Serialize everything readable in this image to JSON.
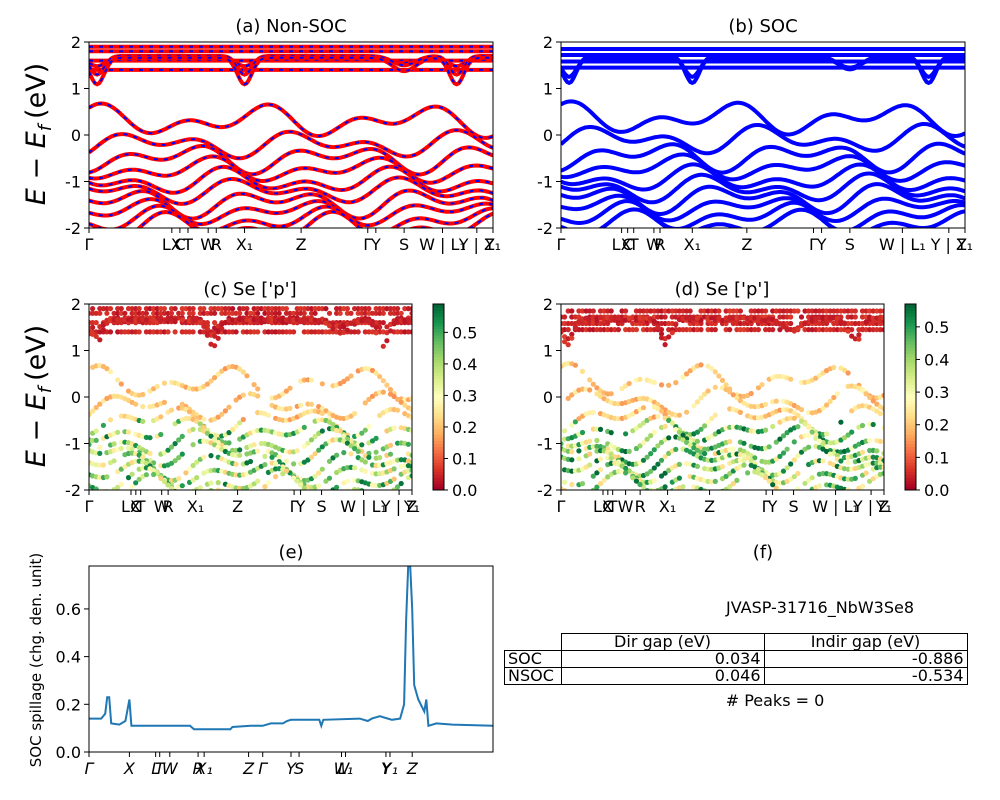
{
  "figure": {
    "ylabel_main": "E − E",
    "ylabel_sub": "f",
    "ylabel_unit": "(eV)"
  },
  "panels": {
    "a": {
      "title": "(a) Non-SOC"
    },
    "b": {
      "title": "(b) SOC"
    },
    "c": {
      "title": "(c)  Se ['p']"
    },
    "d": {
      "title": "(d) Se ['p']"
    },
    "e": {
      "title": "(e)",
      "ylabel": "SOC spillage (chg. den. unit)"
    },
    "f": {
      "title": "(f)",
      "material": "JVASP-31716_NbW3Se8",
      "peaks": "# Peaks = 0"
    }
  },
  "colorbar_c": {
    "ticks": [
      "0.0",
      "0.1",
      "0.2",
      "0.3",
      "0.4",
      "0.5"
    ],
    "max": 0.59,
    "colormap": "RdYlGn"
  },
  "colorbar_d": {
    "ticks": [
      "0.0",
      "0.1",
      "0.2",
      "0.3",
      "0.4",
      "0.5"
    ],
    "max": 0.57,
    "colormap": "RdYlGn"
  },
  "band_colors": {
    "non_soc_line": "#ff0000",
    "non_soc_dash": "#0000ff",
    "soc_line": "#0000ff"
  },
  "spillage_color": "#1f77b4",
  "gap_table": {
    "headers": [
      "Dir gap (eV)",
      "Indir gap (eV)"
    ],
    "rows": [
      {
        "label": "SOC",
        "dir": "0.034",
        "indir": "-0.886"
      },
      {
        "label": "NSOC",
        "dir": "0.046",
        "indir": "-0.534"
      }
    ]
  },
  "chart_data": [
    {
      "type": "line",
      "panel": "a",
      "title": "(a) Non-SOC",
      "ylabel": "E − E_f (eV)",
      "ylim": [
        -2,
        2
      ],
      "yticks": [
        -2,
        -1,
        0,
        1,
        2
      ],
      "xlim": [
        0,
        1
      ],
      "kpath": [
        {
          "label": "Γ",
          "x": 0.0
        },
        {
          "label": "LX",
          "x": 0.205
        },
        {
          "label": "C",
          "x": 0.225
        },
        {
          "label": "T",
          "x": 0.245
        },
        {
          "label": "W",
          "x": 0.295
        },
        {
          "label": "R",
          "x": 0.315
        },
        {
          "label": "X₁",
          "x": 0.385
        },
        {
          "label": "Z",
          "x": 0.525
        },
        {
          "label": "Γ",
          "x": 0.69
        },
        {
          "label": "Y",
          "x": 0.71
        },
        {
          "label": "S",
          "x": 0.78
        },
        {
          "label": "W | L₁",
          "x": 0.875
        },
        {
          "label": "Y | Z",
          "x": 0.96
        },
        {
          "label": "Y₁",
          "x": 1.0
        }
      ],
      "series": [
        {
          "values": [
            {
              "k0": 1.9
            },
            {
              "k0": 1.8
            },
            {
              "k0": 1.6
            },
            {
              "k0": 1.4
            },
            {
              "k0": 1.62,
              "dip": 0.14
            },
            {
              "k0": 1.7,
              "dip": 0.4
            },
            {
              "k0": 1.66,
              "dip": 0.57
            },
            {
              "k0": 0.3,
              "wig": 0.38
            },
            {
              "k0": -0.2,
              "wig": 0.32
            },
            {
              "k0": -0.5,
              "wig": 0.35
            },
            {
              "k0": -0.75,
              "wig": 0.3
            },
            {
              "k0": -1.0,
              "wig": 0.32
            },
            {
              "k0": -1.2,
              "wig": 0.3
            },
            {
              "k0": -1.45,
              "wig": 0.35
            },
            {
              "k0": -1.65,
              "wig": 0.3
            },
            {
              "k0": -1.85,
              "wig": 0.33
            },
            {
              "k0": -2.0,
              "wig": 0.35
            }
          ]
        }
      ]
    },
    {
      "type": "line",
      "panel": "b",
      "title": "(b) SOC",
      "ylim": [
        -2,
        2
      ],
      "yticks": [
        -2,
        -1,
        0,
        1,
        2
      ],
      "xlim": [
        0,
        1
      ],
      "kpath": [
        {
          "label": "Γ",
          "x": 0.0
        },
        {
          "label": "LX",
          "x": 0.15
        },
        {
          "label": "C",
          "x": 0.165
        },
        {
          "label": "T",
          "x": 0.18
        },
        {
          "label": "W",
          "x": 0.23
        },
        {
          "label": "R",
          "x": 0.245
        },
        {
          "label": "X₁",
          "x": 0.325
        },
        {
          "label": "Z",
          "x": 0.46
        },
        {
          "label": "Γ",
          "x": 0.625
        },
        {
          "label": "Y",
          "x": 0.645
        },
        {
          "label": "S",
          "x": 0.715
        },
        {
          "label": "W | L₁",
          "x": 0.845
        },
        {
          "label": "Y | Z",
          "x": 0.96
        },
        {
          "label": "Y₁",
          "x": 1.0
        }
      ],
      "series": [
        {
          "values": [
            {
              "k0": 1.85
            },
            {
              "k0": 1.72
            },
            {
              "k0": 1.58
            },
            {
              "k0": 1.45
            },
            {
              "k0": 1.65,
              "dip": 0.4
            },
            {
              "k0": 1.7,
              "dip": 0.58
            },
            {
              "k0": 0.35,
              "wig": 0.38
            },
            {
              "k0": -0.1,
              "wig": 0.34
            },
            {
              "k0": -0.45,
              "wig": 0.36
            },
            {
              "k0": -0.7,
              "wig": 0.3
            },
            {
              "k0": -0.95,
              "wig": 0.32
            },
            {
              "k0": -1.15,
              "wig": 0.33
            },
            {
              "k0": -1.35,
              "wig": 0.35
            },
            {
              "k0": -1.55,
              "wig": 0.3
            },
            {
              "k0": -1.75,
              "wig": 0.34
            },
            {
              "k0": -1.92,
              "wig": 0.32
            }
          ]
        }
      ]
    },
    {
      "type": "scatter",
      "panel": "c",
      "title": "(c)  Se ['p']",
      "ylim": [
        -2,
        2
      ],
      "yticks": [
        -2,
        -1,
        0,
        1,
        2
      ],
      "color_range": [
        0.0,
        0.59
      ],
      "kpath": [
        {
          "label": "Γ",
          "x": 0.0
        },
        {
          "label": "LX",
          "x": 0.13
        },
        {
          "label": "C",
          "x": 0.145
        },
        {
          "label": "T",
          "x": 0.16
        },
        {
          "label": "W",
          "x": 0.225
        },
        {
          "label": "R",
          "x": 0.245
        },
        {
          "label": "X₁",
          "x": 0.33
        },
        {
          "label": "Z",
          "x": 0.46
        },
        {
          "label": "Γ",
          "x": 0.635
        },
        {
          "label": "Y",
          "x": 0.655
        },
        {
          "label": "S",
          "x": 0.72
        },
        {
          "label": "W | L₁",
          "x": 0.85
        },
        {
          "label": "Y | Z",
          "x": 0.96
        },
        {
          "label": "Y₁",
          "x": 1.0
        }
      ]
    },
    {
      "type": "scatter",
      "panel": "d",
      "title": "(d) Se ['p']",
      "ylim": [
        -2,
        2
      ],
      "yticks": [
        -2,
        -1,
        0,
        1,
        2
      ],
      "color_range": [
        0.0,
        0.57
      ],
      "kpath": [
        {
          "label": "Γ",
          "x": 0.0
        },
        {
          "label": "LX",
          "x": 0.13
        },
        {
          "label": "C",
          "x": 0.145
        },
        {
          "label": "T",
          "x": 0.16
        },
        {
          "label": "W",
          "x": 0.2
        },
        {
          "label": "R",
          "x": 0.245
        },
        {
          "label": "X₁",
          "x": 0.33
        },
        {
          "label": "Z",
          "x": 0.46
        },
        {
          "label": "Γ",
          "x": 0.635
        },
        {
          "label": "Y",
          "x": 0.655
        },
        {
          "label": "S",
          "x": 0.72
        },
        {
          "label": "W | L₁",
          "x": 0.85
        },
        {
          "label": "Y | Z",
          "x": 0.96
        },
        {
          "label": "Y₁",
          "x": 1.0
        }
      ]
    },
    {
      "type": "line",
      "panel": "e",
      "title": "(e)",
      "ylabel": "SOC spillage (chg. den. unit)",
      "ylim": [
        0,
        0.78
      ],
      "yticks": [
        0.0,
        0.2,
        0.4,
        0.6
      ],
      "xlim": [
        0,
        1
      ],
      "kpath": [
        {
          "label": "Γ",
          "x": 0.0
        },
        {
          "label": "X",
          "x": 0.1
        },
        {
          "label": "L",
          "x": 0.165
        },
        {
          "label": "T",
          "x": 0.175
        },
        {
          "label": "W",
          "x": 0.2
        },
        {
          "label": "R",
          "x": 0.27
        },
        {
          "label": "X₁",
          "x": 0.285
        },
        {
          "label": "Z",
          "x": 0.395
        },
        {
          "label": "Γ",
          "x": 0.43
        },
        {
          "label": "Y",
          "x": 0.5
        },
        {
          "label": "S",
          "x": 0.52
        },
        {
          "label": "W",
          "x": 0.625
        },
        {
          "label": "L₁",
          "x": 0.635
        },
        {
          "label": "Y",
          "x": 0.735
        },
        {
          "label": "Y₁",
          "x": 0.745
        },
        {
          "label": "Z",
          "x": 0.8
        }
      ],
      "series": [
        {
          "points": [
            [
              0.0,
              0.14
            ],
            [
              0.03,
              0.14
            ],
            [
              0.04,
              0.16
            ],
            [
              0.045,
              0.23
            ],
            [
              0.05,
              0.23
            ],
            [
              0.055,
              0.12
            ],
            [
              0.075,
              0.115
            ],
            [
              0.09,
              0.13
            ],
            [
              0.1,
              0.22
            ],
            [
              0.105,
              0.11
            ],
            [
              0.2,
              0.11
            ],
            [
              0.25,
              0.11
            ],
            [
              0.26,
              0.095
            ],
            [
              0.35,
              0.095
            ],
            [
              0.355,
              0.105
            ],
            [
              0.4,
              0.11
            ],
            [
              0.43,
              0.11
            ],
            [
              0.45,
              0.12
            ],
            [
              0.48,
              0.12
            ],
            [
              0.49,
              0.13
            ],
            [
              0.5,
              0.135
            ],
            [
              0.57,
              0.135
            ],
            [
              0.575,
              0.11
            ],
            [
              0.58,
              0.135
            ],
            [
              0.67,
              0.14
            ],
            [
              0.69,
              0.13
            ],
            [
              0.7,
              0.14
            ],
            [
              0.72,
              0.15
            ],
            [
              0.75,
              0.135
            ],
            [
              0.77,
              0.14
            ],
            [
              0.78,
              0.2
            ],
            [
              0.785,
              0.55
            ],
            [
              0.79,
              0.78
            ],
            [
              0.795,
              0.78
            ],
            [
              0.8,
              0.6
            ],
            [
              0.805,
              0.28
            ],
            [
              0.815,
              0.22
            ],
            [
              0.83,
              0.17
            ],
            [
              0.835,
              0.22
            ],
            [
              0.84,
              0.11
            ],
            [
              0.86,
              0.12
            ],
            [
              0.9,
              0.115
            ],
            [
              1.0,
              0.11
            ]
          ]
        }
      ]
    }
  ]
}
